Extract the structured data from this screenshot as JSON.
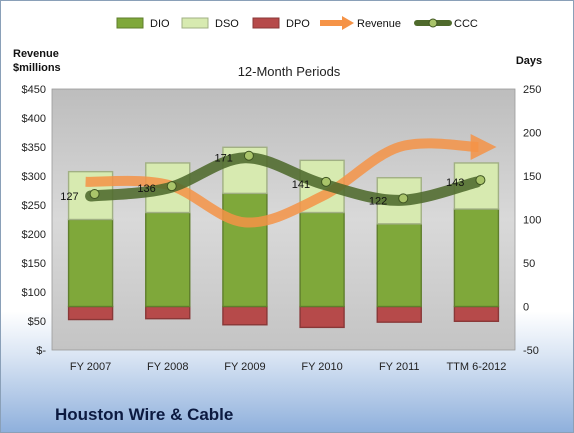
{
  "company_name": "Houston Wire & Cable",
  "colors": {
    "DIO": "#7fa83a",
    "DSO": "#d7eab0",
    "DPO": "#b64a4a",
    "Revenue": "#f59347",
    "CCC": "#4f6a2c",
    "plot_bg": "#c9c9c9"
  },
  "chart_data": {
    "type": "bar",
    "title": "12-Month Periods",
    "left_axis_label": [
      "Revenue",
      "$millions"
    ],
    "right_axis_label": "Days",
    "categories": [
      "FY 2007",
      "FY 2008",
      "FY 2009",
      "FY 2010",
      "FY 2011",
      "TTM 6-2012"
    ],
    "left_axis": {
      "range": [
        0,
        450
      ],
      "ticks": [
        "$-",
        "$50",
        "$100",
        "$150",
        "$200",
        "$250",
        "$300",
        "$350",
        "$400",
        "$450"
      ]
    },
    "right_axis": {
      "range": [
        -50,
        250
      ],
      "ticks": [
        "-50",
        "0",
        "50",
        "100",
        "150",
        "200",
        "250"
      ]
    },
    "legend": [
      "DIO",
      "DSO",
      "DPO",
      "Revenue",
      "CCC"
    ],
    "legend_position": "top",
    "grid": false,
    "series": [
      {
        "name": "DIO",
        "type": "stacked-bar",
        "axis": "right",
        "values": [
          100,
          108,
          130,
          108,
          95,
          112
        ]
      },
      {
        "name": "DSO",
        "type": "stacked-bar",
        "axis": "right",
        "values": [
          55,
          57,
          53,
          60,
          53,
          53
        ]
      },
      {
        "name": "DPO",
        "type": "bar-below-zero",
        "axis": "right",
        "values": [
          -15,
          -14,
          -21,
          -24,
          -18,
          -17
        ]
      },
      {
        "name": "Revenue",
        "type": "smooth-line-arrow",
        "axis": "left",
        "values": [
          290,
          285,
          220,
          265,
          350,
          350
        ]
      },
      {
        "name": "CCC",
        "type": "smooth-line",
        "axis": "right",
        "values": [
          127,
          136,
          171,
          141,
          122,
          143
        ]
      }
    ],
    "data_labels": [
      "127",
      "136",
      "171",
      "141",
      "122",
      "143"
    ]
  }
}
